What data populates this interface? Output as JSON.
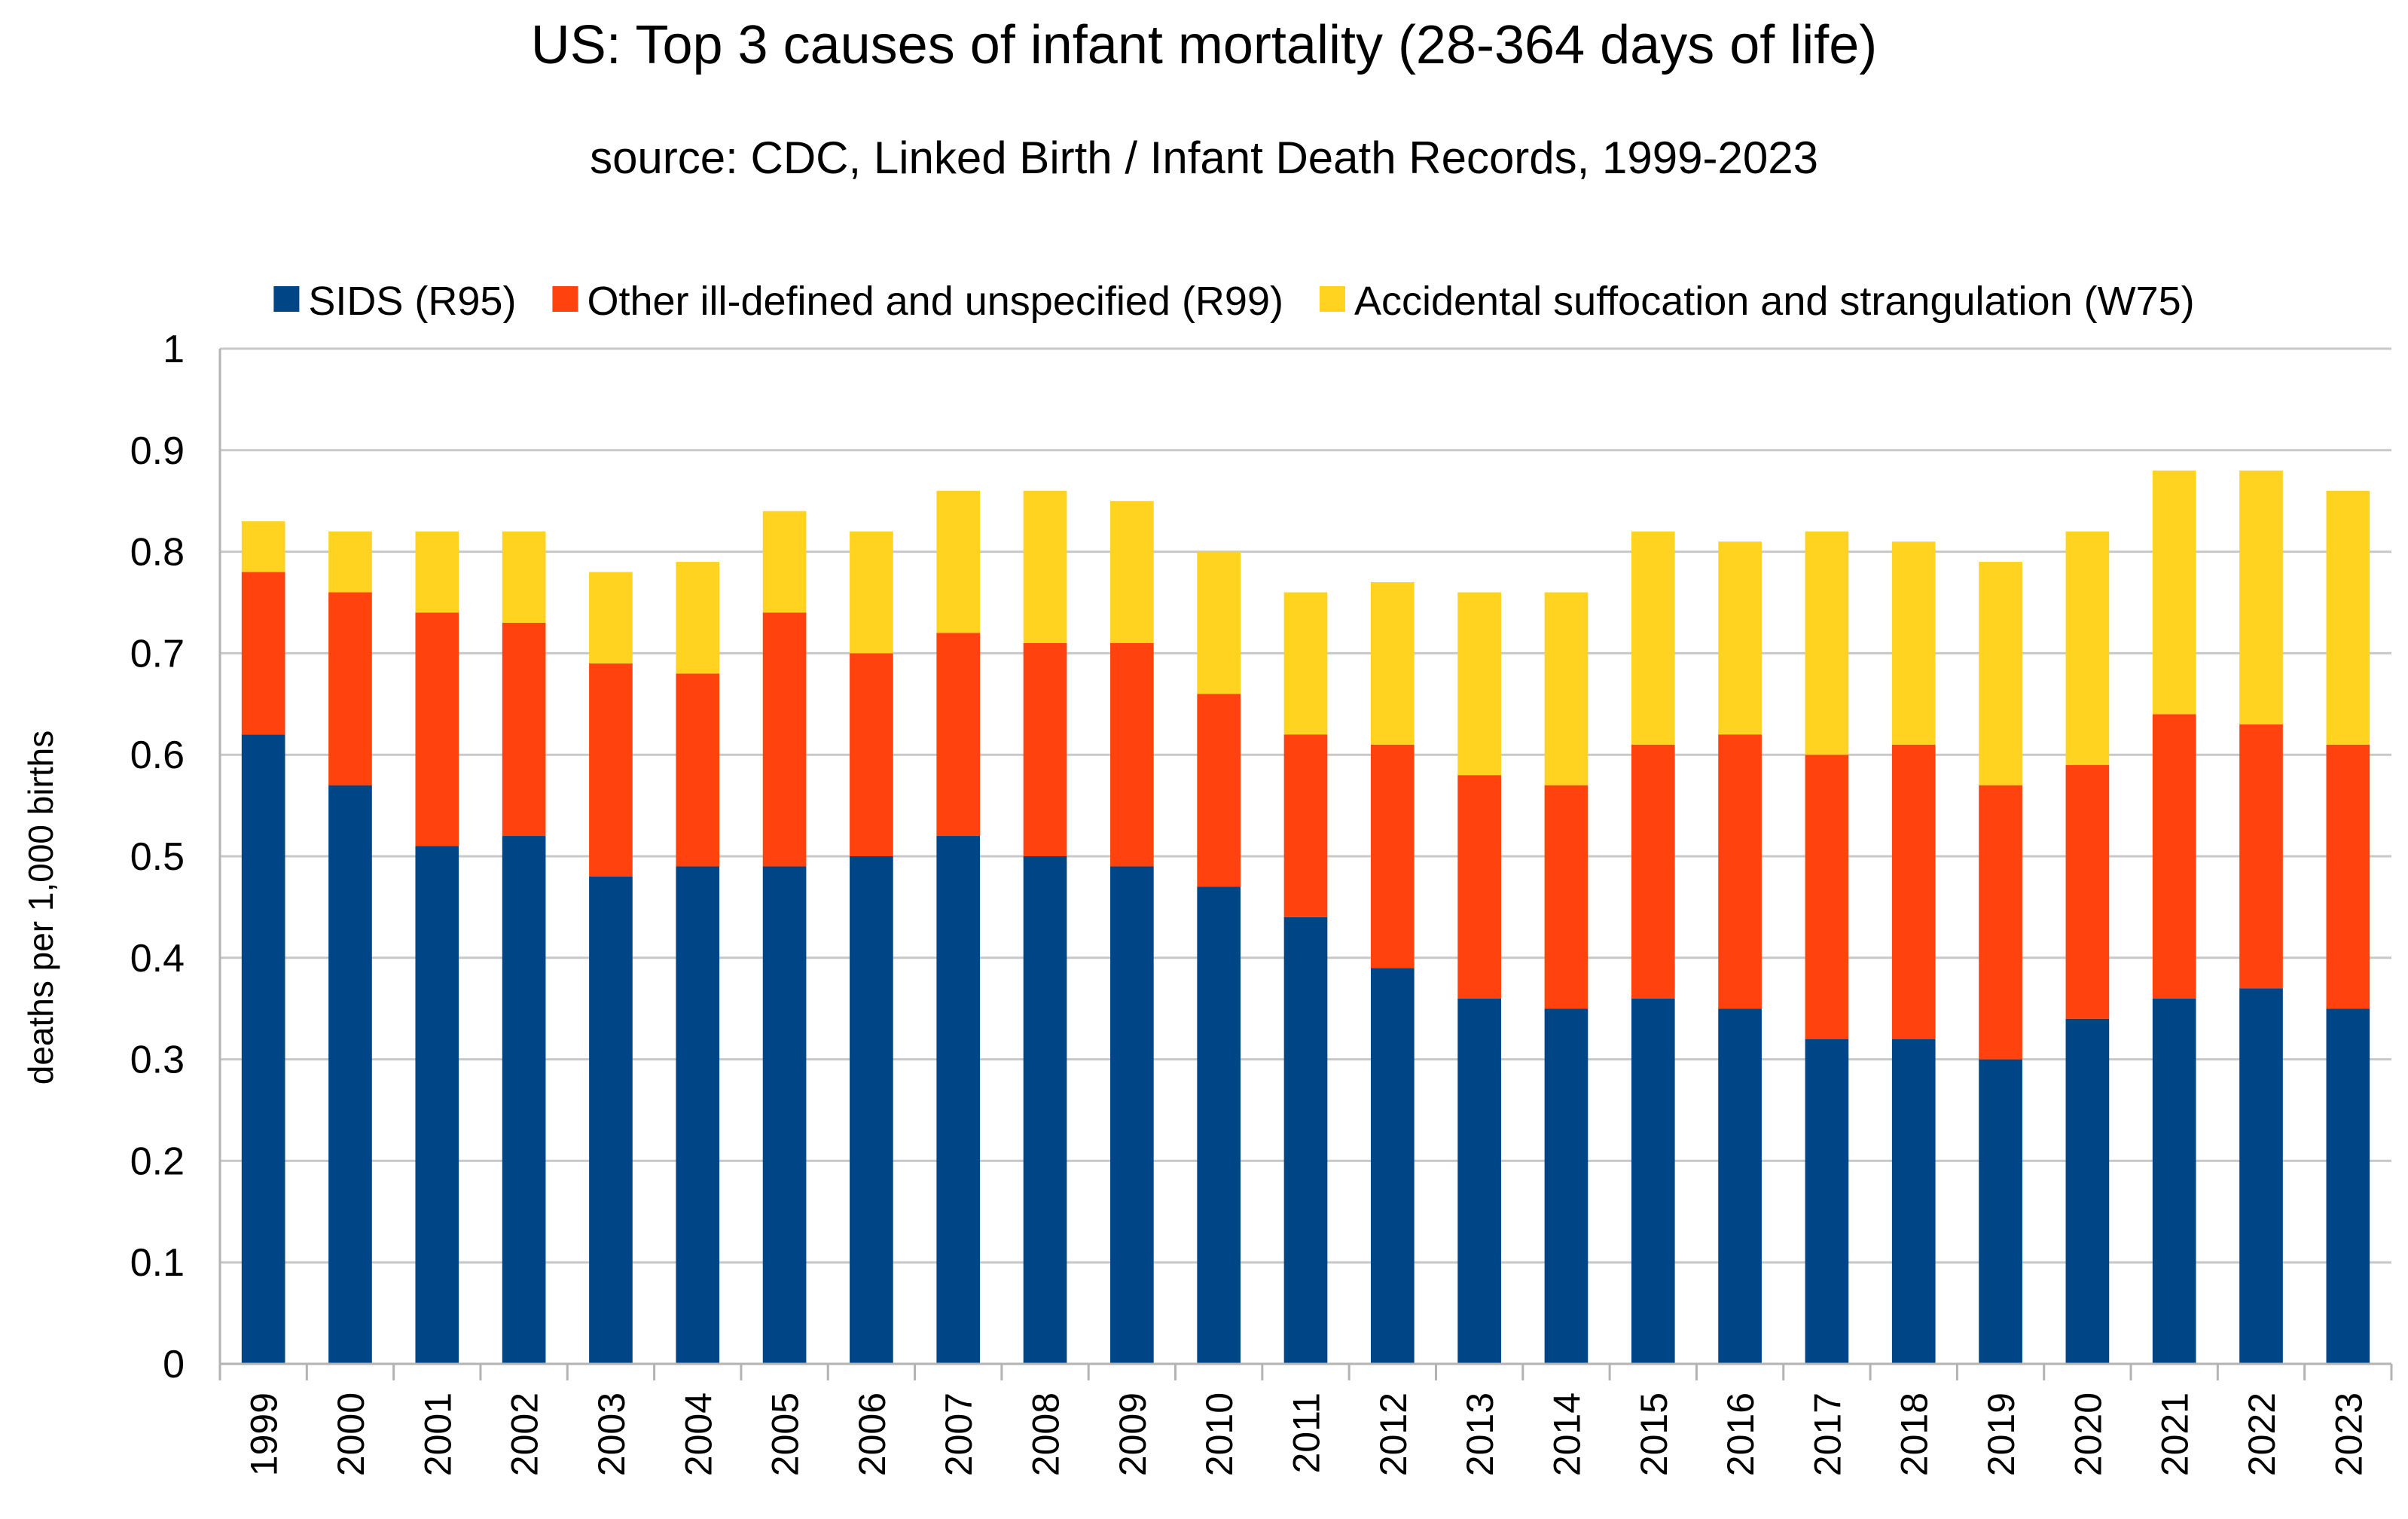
{
  "chart_data": {
    "type": "bar",
    "stacked": true,
    "title": "US: Top 3 causes of infant mortality (28-364 days of life)",
    "subtitle": "source: CDC, Linked Birth / Infant Death Records, 1999-2023",
    "xlabel": "",
    "ylabel": "deaths per 1,000 births",
    "ylim": [
      0,
      1
    ],
    "yticks": [
      0,
      0.1,
      0.2,
      0.3,
      0.4,
      0.5,
      0.6,
      0.7,
      0.8,
      0.9,
      1
    ],
    "ytick_labels": [
      "0",
      "0.1",
      "0.2",
      "0.3",
      "0.4",
      "0.5",
      "0.6",
      "0.7",
      "0.8",
      "0.9",
      "1"
    ],
    "grid": true,
    "legend_position": "top",
    "categories": [
      "1999",
      "2000",
      "2001",
      "2002",
      "2003",
      "2004",
      "2005",
      "2006",
      "2007",
      "2008",
      "2009",
      "2010",
      "2011",
      "2012",
      "2013",
      "2014",
      "2015",
      "2016",
      "2017",
      "2018",
      "2019",
      "2020",
      "2021",
      "2022",
      "2023"
    ],
    "series": [
      {
        "name": "SIDS (R95)",
        "color": "#004586",
        "values": [
          0.62,
          0.57,
          0.51,
          0.52,
          0.48,
          0.49,
          0.49,
          0.5,
          0.52,
          0.5,
          0.49,
          0.47,
          0.44,
          0.39,
          0.36,
          0.35,
          0.36,
          0.35,
          0.32,
          0.32,
          0.3,
          0.34,
          0.36,
          0.37,
          0.35
        ]
      },
      {
        "name": "Other ill-defined and unspecified (R99)",
        "color": "#FF420E",
        "values": [
          0.16,
          0.19,
          0.23,
          0.21,
          0.21,
          0.19,
          0.25,
          0.2,
          0.2,
          0.21,
          0.22,
          0.19,
          0.18,
          0.22,
          0.22,
          0.22,
          0.25,
          0.27,
          0.28,
          0.29,
          0.27,
          0.25,
          0.28,
          0.26,
          0.26
        ]
      },
      {
        "name": "Accidental suffocation and strangulation (W75)",
        "color": "#FFD320",
        "values": [
          0.05,
          0.06,
          0.08,
          0.09,
          0.09,
          0.11,
          0.1,
          0.12,
          0.14,
          0.15,
          0.14,
          0.14,
          0.14,
          0.16,
          0.18,
          0.19,
          0.21,
          0.19,
          0.22,
          0.2,
          0.22,
          0.23,
          0.24,
          0.25,
          0.25
        ]
      }
    ]
  }
}
